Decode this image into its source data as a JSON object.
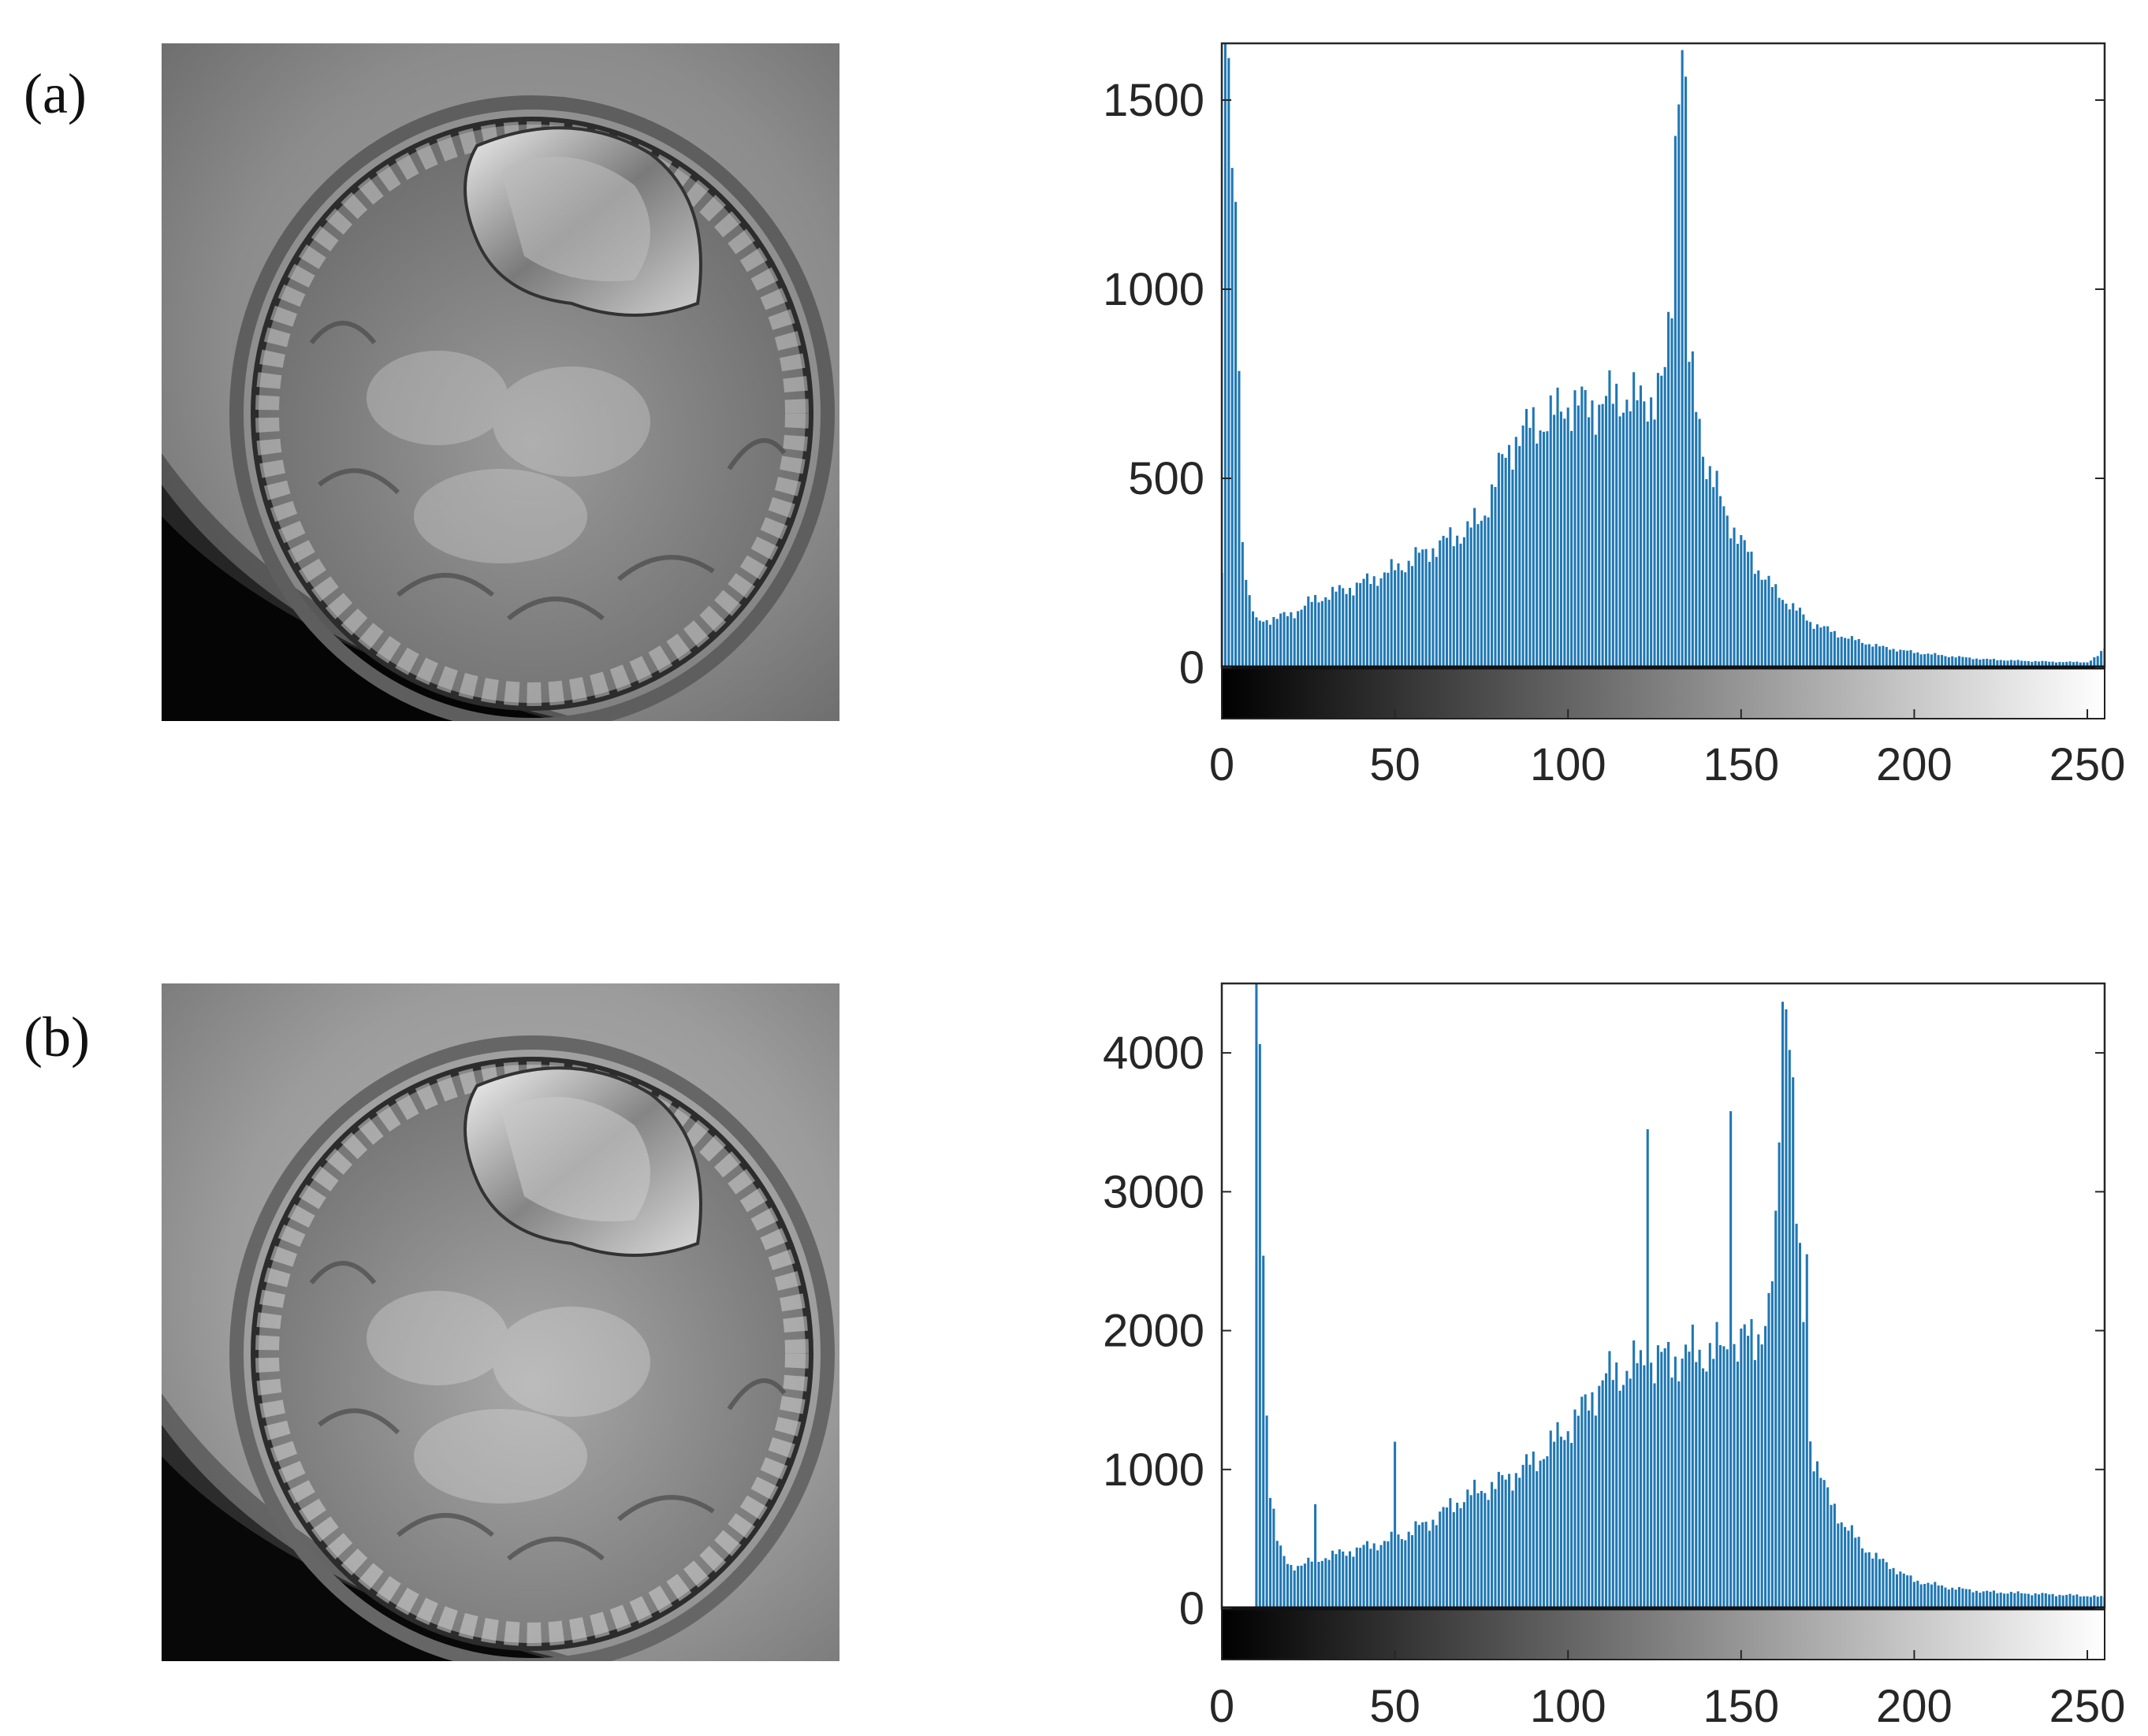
{
  "figure": {
    "panels": [
      {
        "label": "(a)"
      },
      {
        "label": "(b)"
      }
    ],
    "image_description_icon": "embryo-micrograph-icon"
  },
  "chart_data": [
    {
      "type": "bar",
      "title": "",
      "xlabel": "",
      "ylabel": "",
      "xlim": [
        0,
        255
      ],
      "ylim": [
        0,
        1650
      ],
      "xticks": [
        0,
        50,
        100,
        150,
        200,
        250
      ],
      "yticks": [
        0,
        500,
        1000,
        1500
      ],
      "grid": false,
      "colorbar": "grayscale 0-255",
      "bar_color": "#1f77b4",
      "anchors": [
        [
          0,
          250
        ],
        [
          1,
          1650
        ],
        [
          2,
          1600
        ],
        [
          3,
          1200
        ],
        [
          4,
          1300
        ],
        [
          5,
          800
        ],
        [
          6,
          350
        ],
        [
          7,
          250
        ],
        [
          8,
          180
        ],
        [
          9,
          150
        ],
        [
          10,
          120
        ],
        [
          15,
          130
        ],
        [
          20,
          140
        ],
        [
          25,
          170
        ],
        [
          30,
          190
        ],
        [
          40,
          220
        ],
        [
          50,
          260
        ],
        [
          60,
          310
        ],
        [
          70,
          360
        ],
        [
          75,
          390
        ],
        [
          80,
          520
        ],
        [
          85,
          610
        ],
        [
          90,
          640
        ],
        [
          95,
          660
        ],
        [
          100,
          700
        ],
        [
          105,
          690
        ],
        [
          110,
          700
        ],
        [
          115,
          720
        ],
        [
          120,
          700
        ],
        [
          125,
          720
        ],
        [
          128,
          760
        ],
        [
          130,
          1000
        ],
        [
          131,
          1400
        ],
        [
          132,
          1650
        ],
        [
          133,
          1650
        ],
        [
          134,
          1500
        ],
        [
          135,
          800
        ],
        [
          138,
          650
        ],
        [
          140,
          540
        ],
        [
          145,
          420
        ],
        [
          150,
          330
        ],
        [
          155,
          260
        ],
        [
          160,
          200
        ],
        [
          165,
          160
        ],
        [
          170,
          120
        ],
        [
          175,
          100
        ],
        [
          180,
          80
        ],
        [
          190,
          55
        ],
        [
          200,
          40
        ],
        [
          210,
          30
        ],
        [
          220,
          22
        ],
        [
          230,
          18
        ],
        [
          240,
          15
        ],
        [
          250,
          14
        ],
        [
          253,
          30
        ],
        [
          255,
          50
        ]
      ],
      "spikes": []
    },
    {
      "type": "bar",
      "title": "",
      "xlabel": "",
      "ylabel": "",
      "xlim": [
        0,
        255
      ],
      "ylim": [
        0,
        4500
      ],
      "xticks": [
        0,
        50,
        100,
        150,
        200,
        250
      ],
      "yticks": [
        0,
        1000,
        2000,
        3000,
        4000
      ],
      "grid": false,
      "colorbar": "grayscale 0-255",
      "bar_color": "#1f77b4",
      "anchors": [
        [
          0,
          0
        ],
        [
          9,
          0
        ],
        [
          10,
          4500
        ],
        [
          11,
          4000
        ],
        [
          12,
          2600
        ],
        [
          13,
          1400
        ],
        [
          14,
          900
        ],
        [
          16,
          500
        ],
        [
          18,
          350
        ],
        [
          20,
          300
        ],
        [
          25,
          330
        ],
        [
          30,
          370
        ],
        [
          40,
          430
        ],
        [
          50,
          500
        ],
        [
          60,
          620
        ],
        [
          70,
          800
        ],
        [
          80,
          900
        ],
        [
          90,
          1050
        ],
        [
          100,
          1300
        ],
        [
          105,
          1450
        ],
        [
          110,
          1650
        ],
        [
          115,
          1700
        ],
        [
          120,
          1750
        ],
        [
          125,
          1780
        ],
        [
          130,
          1800
        ],
        [
          135,
          1830
        ],
        [
          140,
          1850
        ],
        [
          145,
          1860
        ],
        [
          150,
          1900
        ],
        [
          155,
          2000
        ],
        [
          158,
          2100
        ],
        [
          160,
          2600
        ],
        [
          161,
          3500
        ],
        [
          162,
          4500
        ],
        [
          163,
          4500
        ],
        [
          164,
          4400
        ],
        [
          165,
          3600
        ],
        [
          166,
          2800
        ],
        [
          168,
          2000
        ],
        [
          170,
          1200
        ],
        [
          175,
          800
        ],
        [
          180,
          600
        ],
        [
          185,
          450
        ],
        [
          190,
          350
        ],
        [
          200,
          200
        ],
        [
          210,
          150
        ],
        [
          220,
          120
        ],
        [
          230,
          110
        ],
        [
          240,
          100
        ],
        [
          250,
          90
        ],
        [
          255,
          80
        ]
      ],
      "spikes": [
        [
          50,
          1200
        ],
        [
          27,
          750
        ],
        [
          123,
          3450
        ],
        [
          147,
          3580
        ],
        [
          169,
          2550
        ]
      ]
    }
  ]
}
